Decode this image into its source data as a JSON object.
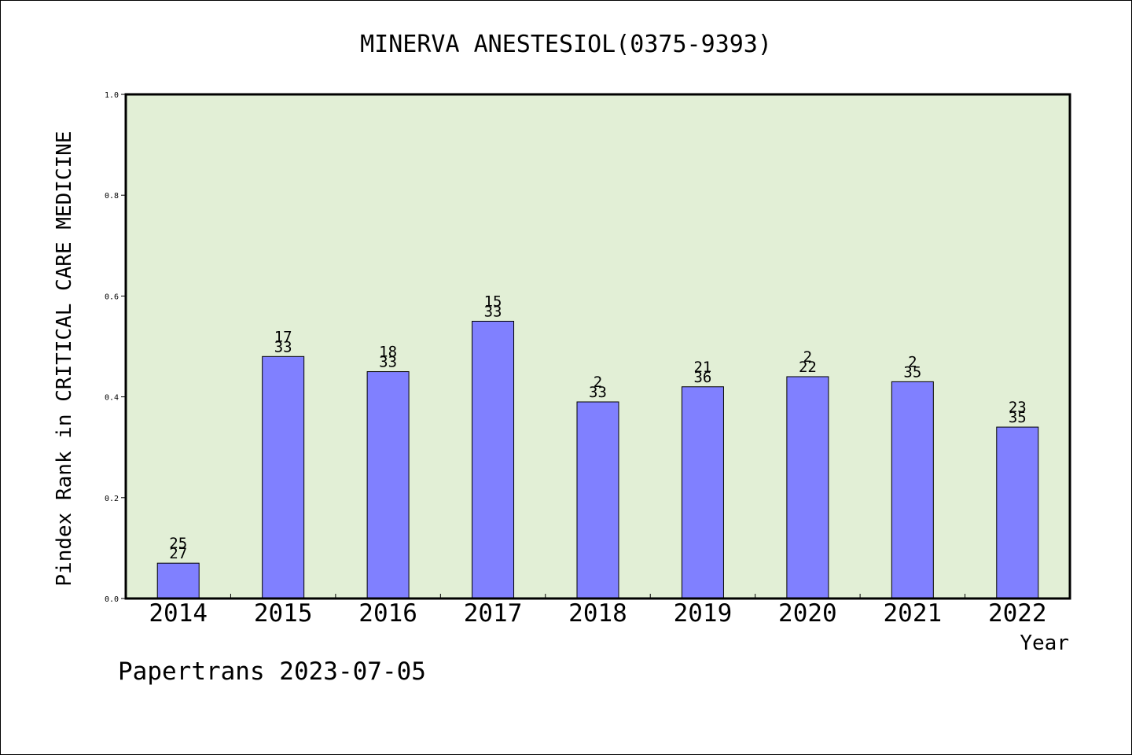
{
  "chart_data": {
    "type": "bar",
    "title": "MINERVA ANESTESIOL(0375-9393)",
    "xlabel": "Year",
    "ylabel": "Pindex Rank in CRITICAL CARE MEDICINE",
    "footer": "Papertrans 2023-07-05",
    "categories": [
      "2014",
      "2015",
      "2016",
      "2017",
      "2018",
      "2019",
      "2020",
      "2021",
      "2022"
    ],
    "values": [
      0.07,
      0.48,
      0.45,
      0.55,
      0.39,
      0.42,
      0.44,
      0.43,
      0.34
    ],
    "rank_labels": [
      {
        "rank": "25",
        "total": "27"
      },
      {
        "rank": "17",
        "total": "33"
      },
      {
        "rank": "18",
        "total": "33"
      },
      {
        "rank": "15",
        "total": "33"
      },
      {
        "rank": "2",
        "total": "33"
      },
      {
        "rank": "21",
        "total": "36"
      },
      {
        "rank": "2",
        "total": "22"
      },
      {
        "rank": "2",
        "total": "35"
      },
      {
        "rank": "23",
        "total": "35"
      }
    ],
    "ylim": [
      0,
      1.0
    ],
    "yticks": [
      "0.0",
      "0.2",
      "0.4",
      "0.6",
      "0.8",
      "1.0"
    ],
    "grid": false,
    "colors": {
      "bar": "#8080ff",
      "plot_background": "#e2efd6",
      "axis": "#000000"
    }
  }
}
